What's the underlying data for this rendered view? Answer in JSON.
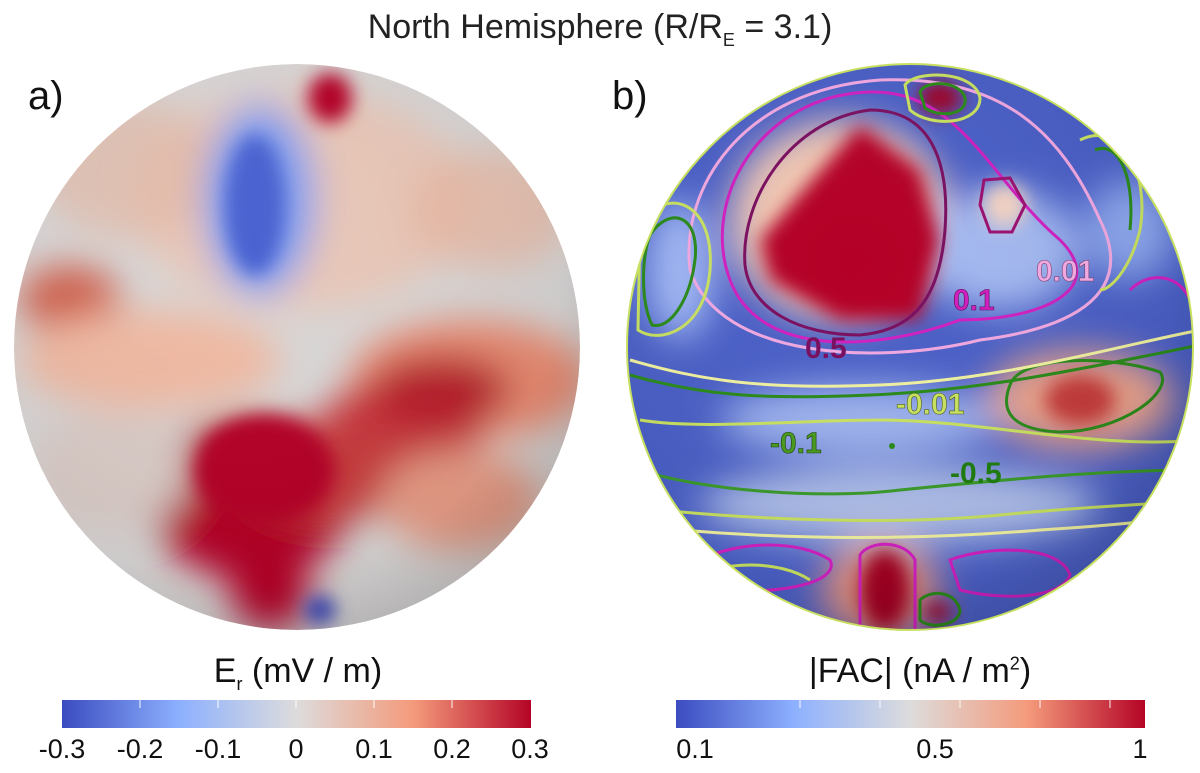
{
  "title": {
    "prefix": "North Hemisphere (R/R",
    "sub": "E",
    "suffix": " = 3.1)"
  },
  "panels": [
    {
      "label": "a)",
      "colorbar": {
        "title_main": "E",
        "title_sub": "r",
        "title_rest": " (mV / m)",
        "ticks": [
          "-0.3",
          "-0.2",
          "-0.1",
          "0",
          "0.1",
          "0.2",
          "0.3"
        ],
        "colormap": "cool-to-warm diverging",
        "range": [
          -0.3,
          0.3
        ]
      }
    },
    {
      "label": "b)",
      "colorbar": {
        "title_main": "|FAC| (nA / m",
        "title_sup": "2",
        "title_rest": ")",
        "ticks": [
          "0.1",
          "0.5",
          "1"
        ],
        "colormap": "cool-to-warm",
        "range": [
          0.1,
          1
        ]
      },
      "contour_labels": [
        {
          "text": "0.01",
          "color": "#f0a8e0"
        },
        {
          "text": "0.1",
          "color": "#d020c0"
        },
        {
          "text": "0.5",
          "color": "#7a1060"
        },
        {
          "text": "-0.01",
          "color": "#c8e060"
        },
        {
          "text": "-0.1",
          "color": "#4a9a20"
        },
        {
          "text": "-0.5",
          "color": "#1f7a10"
        }
      ]
    }
  ],
  "colors": {
    "blue": "#3b4cc0",
    "white": "#dddddd",
    "red": "#b40426",
    "darkred": "#9a0020"
  }
}
